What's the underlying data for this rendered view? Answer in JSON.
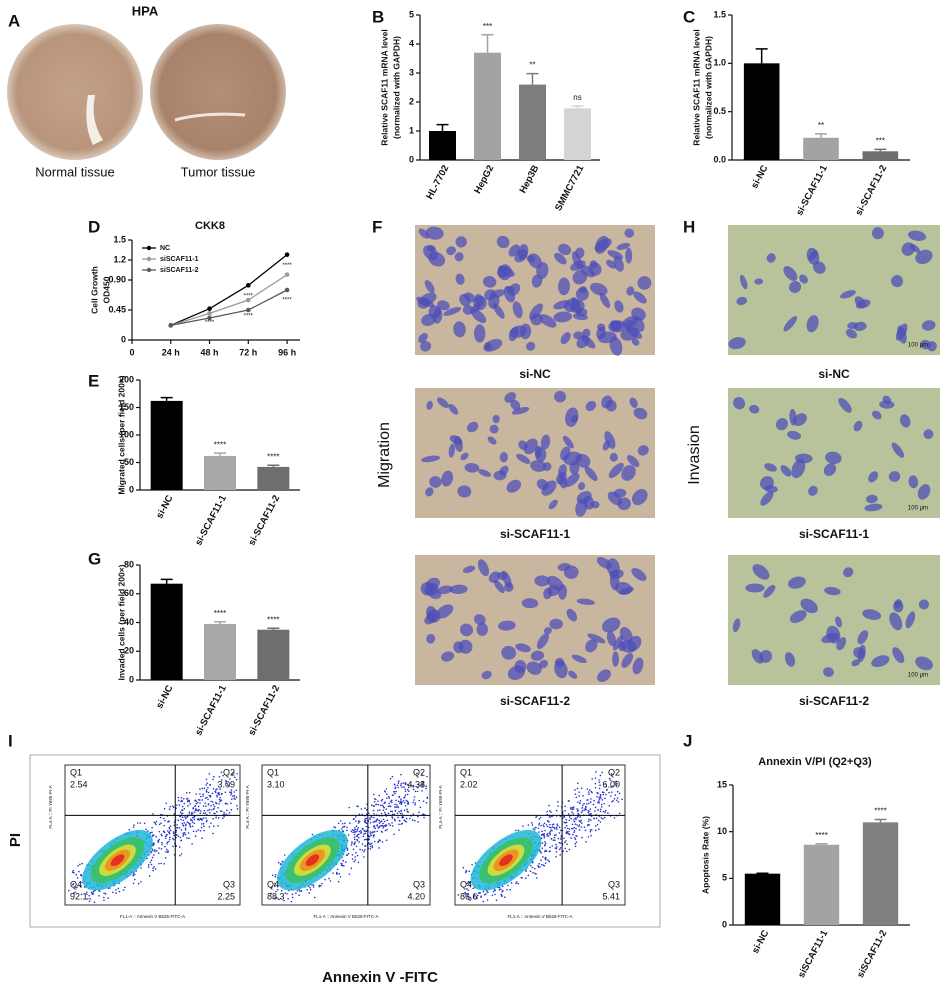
{
  "panel_letters": [
    "A",
    "B",
    "C",
    "D",
    "E",
    "F",
    "G",
    "H",
    "I",
    "J"
  ],
  "hpa": {
    "title": "HPA",
    "labels": [
      "Normal tissue",
      "Tumor tissue"
    ]
  },
  "migration": {
    "title": "Migration",
    "labels": [
      "si-NC",
      "si-SCAF11-1",
      "si-SCAF11-2"
    ]
  },
  "invasion": {
    "title": "Invasion",
    "labels": [
      "si-NC",
      "si-SCAF11-1",
      "si-SCAF11-2"
    ],
    "scale_bar": "100 μm"
  },
  "flow": {
    "ylabel": "PI",
    "xlabel": "Annexin V -FITC",
    "x_axis_label": "FL1-A :: Annexin V B525-FITC-A",
    "y_axis_label": "FL4-A :: PI Y695-PI-A",
    "plots": [
      {
        "quadrants": [
          {
            "name": "Q1",
            "value": "2.54"
          },
          {
            "name": "Q2",
            "value": "3.09"
          },
          {
            "name": "Q3",
            "value": "2.25"
          },
          {
            "name": "Q4",
            "value": "92.1"
          }
        ]
      },
      {
        "quadrants": [
          {
            "name": "Q1",
            "value": "3.10"
          },
          {
            "name": "Q2",
            "value": "4.38"
          },
          {
            "name": "Q3",
            "value": "4.20"
          },
          {
            "name": "Q4",
            "value": "88.3"
          }
        ]
      },
      {
        "quadrants": [
          {
            "name": "Q1",
            "value": "2.02"
          },
          {
            "name": "Q2",
            "value": "6.00"
          },
          {
            "name": "Q3",
            "value": "5.41"
          },
          {
            "name": "Q4",
            "value": "86.6"
          }
        ]
      }
    ]
  },
  "chart_data": [
    {
      "type": "bar",
      "ylabel": [
        "Relative SCAF11 mRNA level",
        "(normalized with GAPDH)"
      ],
      "categories": [
        "HL-7702",
        "HepG2",
        "Hep3B",
        "SMMC7721"
      ],
      "values": [
        1.0,
        3.7,
        2.6,
        1.78
      ],
      "errors": [
        0.22,
        0.62,
        0.38,
        0.08
      ],
      "colors": [
        "#000000",
        "#a3a3a3",
        "#7d7d7d",
        "#d4d4d4"
      ],
      "significance": [
        null,
        "***",
        "**",
        "ns"
      ],
      "ylim": [
        0,
        5
      ],
      "yticks": [
        0,
        1,
        2,
        3,
        4,
        5
      ]
    },
    {
      "type": "bar",
      "ylabel": [
        "Relative SCAF11 mRNA level",
        "(normalized with GAPDH)"
      ],
      "categories": [
        "si-NC",
        "si-SCAF11-1",
        "si-SCAF11-2"
      ],
      "values": [
        1.0,
        0.23,
        0.09
      ],
      "errors": [
        0.15,
        0.04,
        0.02
      ],
      "colors": [
        "#000000",
        "#a3a3a3",
        "#6e6e6e"
      ],
      "significance": [
        null,
        "**",
        "***"
      ],
      "ylim": [
        0,
        1.5
      ],
      "yticks": [
        {
          "value": 0,
          "label": "0.0"
        },
        0.5,
        {
          "value": 1,
          "label": "1.0"
        },
        1.5
      ]
    },
    {
      "type": "line",
      "title": "CKK8",
      "ylabel": [
        "Cell Growth",
        "OD450"
      ],
      "x": [
        24,
        48,
        72,
        96
      ],
      "xlim": [
        0,
        104
      ],
      "xticks": [
        0,
        {
          "value": 24,
          "label": "24 h"
        },
        {
          "value": 48,
          "label": "48 h"
        },
        {
          "value": 72,
          "label": "72 h"
        },
        {
          "value": 96,
          "label": "96 h"
        }
      ],
      "ylim": [
        0,
        1.5
      ],
      "yticks": [
        0,
        0.45,
        {
          "value": 0.9,
          "label": "0.90"
        },
        1.2,
        1.5
      ],
      "legend": "top-left",
      "series": [
        {
          "name": "NC",
          "color": "#000000",
          "values": [
            0.22,
            0.47,
            0.82,
            1.28
          ]
        },
        {
          "name": "siSCAF11-1",
          "color": "#9a9a9a",
          "values": [
            0.22,
            0.4,
            0.6,
            0.98
          ]
        },
        {
          "name": "siSCAF11-2",
          "color": "#5a5a5a",
          "values": [
            0.22,
            0.33,
            0.45,
            0.75
          ]
        }
      ],
      "annotations": [
        {
          "text": "****",
          "x": 96,
          "y": 1.12
        },
        {
          "text": "****",
          "x": 96,
          "y": 0.6
        },
        {
          "text": "****",
          "x": 72,
          "y": 0.66
        },
        {
          "text": "****",
          "x": 72,
          "y": 0.36
        },
        {
          "text": "****",
          "x": 48,
          "y": 0.26
        }
      ]
    },
    {
      "type": "bar",
      "ylabel": [
        "Migrated cells (per field 200×)"
      ],
      "categories": [
        "si-NC",
        "si-SCAF11-1",
        "si-SCAF11-2"
      ],
      "values": [
        162,
        62,
        42
      ],
      "errors": [
        6,
        5,
        3
      ],
      "colors": [
        "#000000",
        "#a8a8a8",
        "#6e6e6e"
      ],
      "significance": [
        null,
        "****",
        "****"
      ],
      "ylim": [
        0,
        200
      ],
      "yticks": [
        0,
        50,
        100,
        150,
        200
      ]
    },
    {
      "type": "bar",
      "ylabel": [
        "Invaded cells (per field 200×)"
      ],
      "categories": [
        "si-NC",
        "si-SCAF11-1",
        "si-SCAF11-2"
      ],
      "values": [
        67,
        39,
        35
      ],
      "errors": [
        3,
        1.5,
        1
      ],
      "colors": [
        "#000000",
        "#a8a8a8",
        "#6e6e6e"
      ],
      "significance": [
        null,
        "****",
        "****"
      ],
      "ylim": [
        0,
        80
      ],
      "yticks": [
        0,
        20,
        40,
        60,
        80
      ]
    },
    {
      "type": "bar",
      "title": "Annexin V/PI (Q2+Q3)",
      "ylabel": [
        "Apoptosis Rate (%)"
      ],
      "categories": [
        "si-NC",
        "siSCAF11-1",
        "siSCAF11-2"
      ],
      "values": [
        5.5,
        8.6,
        11.0
      ],
      "errors": [
        0.05,
        0.1,
        0.3
      ],
      "colors": [
        "#000000",
        "#a3a3a3",
        "#808080"
      ],
      "significance": [
        null,
        "****",
        "****"
      ],
      "ylim": [
        0,
        15
      ],
      "yticks": [
        0,
        5,
        10,
        15
      ]
    }
  ]
}
